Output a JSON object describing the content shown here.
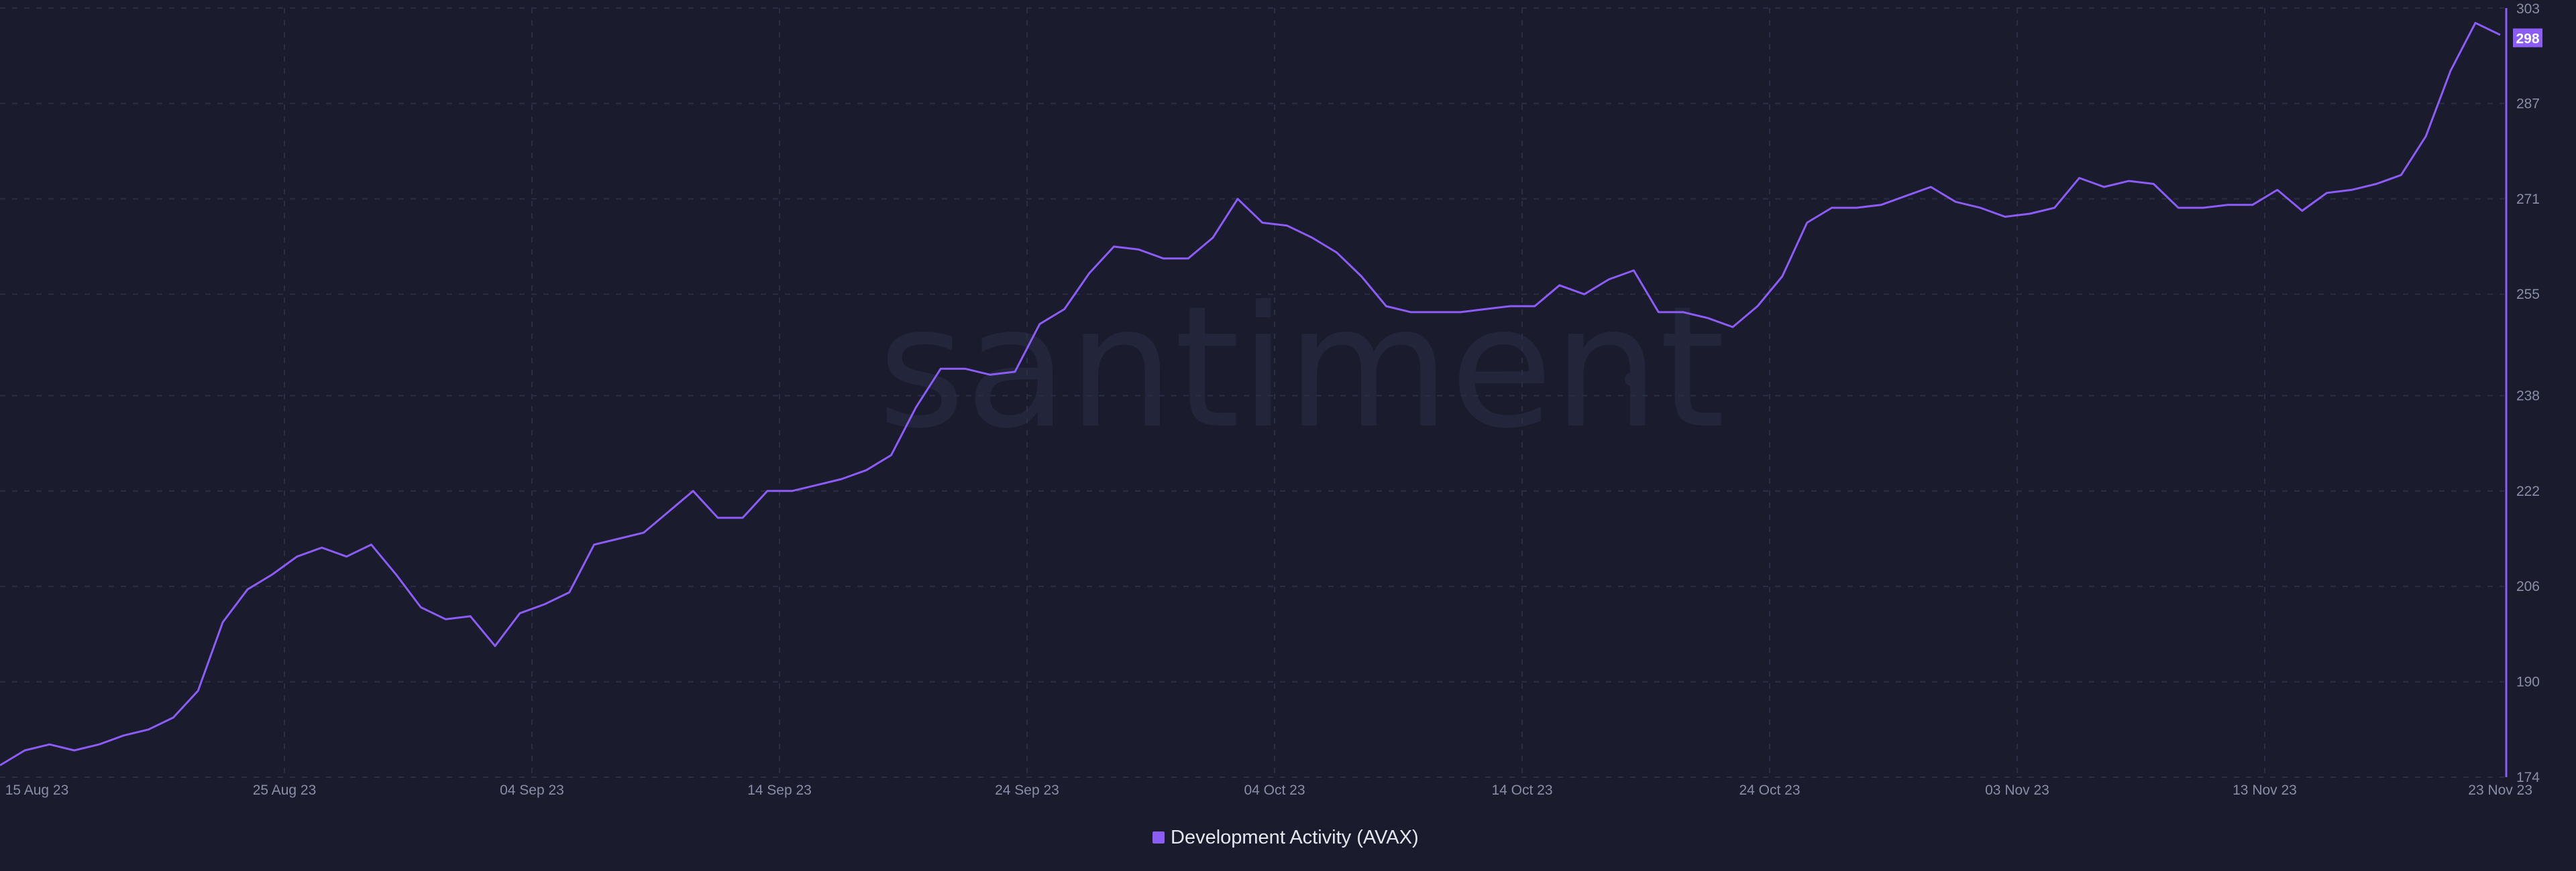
{
  "watermark": "santiment",
  "colors": {
    "background": "#1a1c2e",
    "series": "#8b5cf6",
    "grid": "#2a2d44",
    "axis": "#8a8da6"
  },
  "chart_data": {
    "type": "line",
    "title": "",
    "xlabel": "",
    "ylabel": "",
    "ylim": [
      174,
      303
    ],
    "y_ticks": [
      174,
      190,
      206,
      222,
      238,
      255,
      271,
      287,
      303
    ],
    "x_tick_labels": [
      "15 Aug 23",
      "25 Aug 23",
      "04 Sep 23",
      "14 Sep 23",
      "24 Sep 23",
      "04 Oct 23",
      "14 Oct 23",
      "24 Oct 23",
      "03 Nov 23",
      "13 Nov 23",
      "23 Nov 23"
    ],
    "x_start_label": "15 Aug 23",
    "grid": true,
    "legend_position": "bottom-center",
    "last_value": "298",
    "series": [
      {
        "name": "Development Activity (AVAX)",
        "color": "#8b5cf6",
        "values": [
          176,
          178.5,
          179.5,
          178.5,
          179.5,
          181,
          182,
          184,
          188.5,
          200,
          205.5,
          208,
          211,
          212.5,
          211,
          213,
          208,
          202.5,
          200.5,
          201,
          196,
          201.5,
          203,
          205,
          213,
          214,
          215,
          218.5,
          222,
          217.5,
          217.5,
          222,
          222,
          223,
          224,
          225.5,
          228,
          236,
          242.5,
          242.5,
          241.5,
          242,
          250,
          252.5,
          258.5,
          263,
          262.5,
          261,
          261,
          264.5,
          271,
          267,
          266.5,
          264.5,
          262,
          258,
          253,
          252,
          252,
          252,
          252.5,
          253,
          253,
          256.5,
          255,
          257.5,
          259,
          252,
          252,
          251,
          249.5,
          253,
          258,
          267,
          269.5,
          269.5,
          270,
          271.5,
          273,
          270.5,
          269.5,
          268,
          268.5,
          269.5,
          274.5,
          273,
          274,
          273.5,
          269.5,
          269.5,
          270,
          270,
          272.5,
          269,
          272,
          272.5,
          273.5,
          275,
          281.5,
          292.5,
          300.5,
          298.5
        ]
      }
    ]
  }
}
